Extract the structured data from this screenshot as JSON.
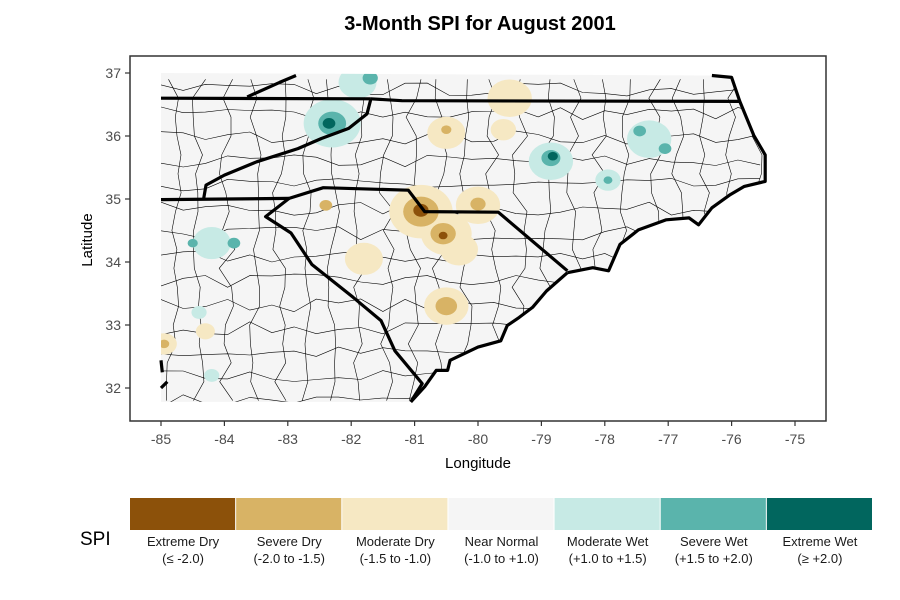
{
  "chart_data": {
    "type": "map",
    "title": "3-Month SPI for August 2001",
    "xlabel": "Longitude",
    "ylabel": "Latitude",
    "xlim": [
      -85.5,
      -74.5
    ],
    "ylim": [
      31.55,
      37.25
    ],
    "x_ticks": [
      "-85",
      "-84",
      "-83",
      "-82",
      "-81",
      "-80",
      "-79",
      "-78",
      "-77",
      "-76",
      "-75"
    ],
    "y_ticks": [
      "32",
      "33",
      "34",
      "35",
      "36",
      "37"
    ],
    "legend": {
      "title": "SPI",
      "placement": "bottom",
      "items": [
        {
          "label": "Extreme Dry",
          "range": "(≤ -2.0)",
          "color": "#8c510a"
        },
        {
          "label": "Severe Dry",
          "range": "(-2.0 to -1.5)",
          "color": "#d8b365"
        },
        {
          "label": "Moderate Dry",
          "range": "(-1.5 to -1.0)",
          "color": "#f6e8c3"
        },
        {
          "label": "Near Normal",
          "range": "(-1.0 to +1.0)",
          "color": "#f5f5f5"
        },
        {
          "label": "Moderate Wet",
          "range": "(+1.0 to +1.5)",
          "color": "#c7eae5"
        },
        {
          "label": "Severe Wet",
          "range": "(+1.5 to +2.0)",
          "color": "#5ab4ac"
        },
        {
          "label": "Extreme Wet",
          "range": "(≥ +2.0)",
          "color": "#01665e"
        }
      ]
    },
    "spi_anomalies": [
      {
        "lon": -80.9,
        "lat": 34.8,
        "class": 2,
        "r": 0.5
      },
      {
        "lon": -80.5,
        "lat": 34.45,
        "class": 2,
        "r": 0.4
      },
      {
        "lon": -80.0,
        "lat": 34.9,
        "class": 2,
        "r": 0.35
      },
      {
        "lon": -80.3,
        "lat": 34.2,
        "class": 2,
        "r": 0.3
      },
      {
        "lon": -81.8,
        "lat": 34.05,
        "class": 2,
        "r": 0.3
      },
      {
        "lon": -80.5,
        "lat": 33.3,
        "class": 2,
        "r": 0.35
      },
      {
        "lon": -80.5,
        "lat": 36.05,
        "class": 2,
        "r": 0.3
      },
      {
        "lon": -79.5,
        "lat": 36.6,
        "class": 2,
        "r": 0.35
      },
      {
        "lon": -79.6,
        "lat": 36.1,
        "class": 2,
        "r": 0.2
      },
      {
        "lon": -84.3,
        "lat": 32.9,
        "class": 2,
        "r": 0.15
      },
      {
        "lon": -84.95,
        "lat": 32.7,
        "class": 2,
        "r": 0.2
      },
      {
        "lon": -80.9,
        "lat": 34.8,
        "class": 1,
        "r": 0.28
      },
      {
        "lon": -80.55,
        "lat": 34.45,
        "class": 1,
        "r": 0.2
      },
      {
        "lon": -80.0,
        "lat": 34.92,
        "class": 1,
        "r": 0.12
      },
      {
        "lon": -80.5,
        "lat": 33.3,
        "class": 1,
        "r": 0.17
      },
      {
        "lon": -82.4,
        "lat": 34.9,
        "class": 1,
        "r": 0.1
      },
      {
        "lon": -80.5,
        "lat": 36.1,
        "class": 1,
        "r": 0.08
      },
      {
        "lon": -84.95,
        "lat": 32.7,
        "class": 1,
        "r": 0.08
      },
      {
        "lon": -80.9,
        "lat": 34.82,
        "class": 0,
        "r": 0.12
      },
      {
        "lon": -80.55,
        "lat": 34.42,
        "class": 0,
        "r": 0.07
      },
      {
        "lon": -82.3,
        "lat": 36.2,
        "class": 4,
        "r": 0.45
      },
      {
        "lon": -81.9,
        "lat": 36.85,
        "class": 4,
        "r": 0.3
      },
      {
        "lon": -78.85,
        "lat": 35.6,
        "class": 4,
        "r": 0.35
      },
      {
        "lon": -77.3,
        "lat": 35.95,
        "class": 4,
        "r": 0.35
      },
      {
        "lon": -77.95,
        "lat": 35.3,
        "class": 4,
        "r": 0.2
      },
      {
        "lon": -84.2,
        "lat": 34.3,
        "class": 4,
        "r": 0.3
      },
      {
        "lon": -84.4,
        "lat": 33.2,
        "class": 4,
        "r": 0.12
      },
      {
        "lon": -84.2,
        "lat": 32.2,
        "class": 4,
        "r": 0.12
      },
      {
        "lon": -82.3,
        "lat": 36.2,
        "class": 5,
        "r": 0.22
      },
      {
        "lon": -81.7,
        "lat": 36.92,
        "class": 5,
        "r": 0.12
      },
      {
        "lon": -78.85,
        "lat": 35.65,
        "class": 5,
        "r": 0.15
      },
      {
        "lon": -77.45,
        "lat": 36.08,
        "class": 5,
        "r": 0.1
      },
      {
        "lon": -77.05,
        "lat": 35.8,
        "class": 5,
        "r": 0.1
      },
      {
        "lon": -77.95,
        "lat": 35.3,
        "class": 5,
        "r": 0.07
      },
      {
        "lon": -83.85,
        "lat": 34.3,
        "class": 5,
        "r": 0.1
      },
      {
        "lon": -84.5,
        "lat": 34.3,
        "class": 5,
        "r": 0.08
      },
      {
        "lon": -82.35,
        "lat": 36.2,
        "class": 6,
        "r": 0.1
      },
      {
        "lon": -78.82,
        "lat": 35.68,
        "class": 6,
        "r": 0.08
      }
    ]
  }
}
